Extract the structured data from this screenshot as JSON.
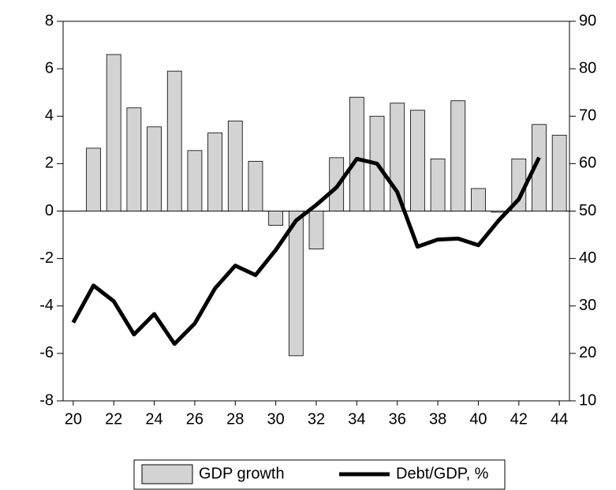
{
  "chart_data": {
    "type": "bar-line",
    "categories": [
      "20",
      null,
      "22",
      null,
      "24",
      null,
      "26",
      null,
      "28",
      null,
      "30",
      null,
      "32",
      null,
      "34",
      null,
      "36",
      null,
      "38",
      null,
      "40",
      null,
      "42",
      null,
      "44"
    ],
    "series": [
      {
        "name": "GDP growth",
        "type": "bar",
        "axis": "y",
        "color": "#d3d3d3",
        "values": [
          null,
          2.65,
          6.6,
          4.35,
          3.55,
          5.9,
          2.55,
          3.3,
          3.8,
          2.1,
          -0.6,
          -6.1,
          -1.6,
          2.25,
          4.8,
          4.0,
          4.55,
          4.25,
          2.2,
          4.65,
          0.95,
          -0.05,
          2.2,
          3.65,
          3.2
        ]
      },
      {
        "name": "Debt/GDP, %",
        "type": "line",
        "axis": "y2",
        "color": "#000000",
        "values": [
          26.5,
          34.3,
          31,
          24,
          28.3,
          22,
          26.3,
          33.7,
          38.5,
          36.5,
          41.8,
          48,
          51.3,
          55,
          61,
          60,
          54,
          42.5,
          44,
          44.2,
          42.8,
          48,
          52.5,
          61.3,
          null
        ]
      }
    ],
    "ylim": [
      -8,
      8
    ],
    "yticks": [
      -8,
      -6,
      -4,
      -2,
      0,
      2,
      4,
      6,
      8
    ],
    "y2lim": [
      10,
      90
    ],
    "y2ticks": [
      10,
      20,
      30,
      40,
      50,
      60,
      70,
      80,
      90
    ],
    "legend": "bottom"
  }
}
